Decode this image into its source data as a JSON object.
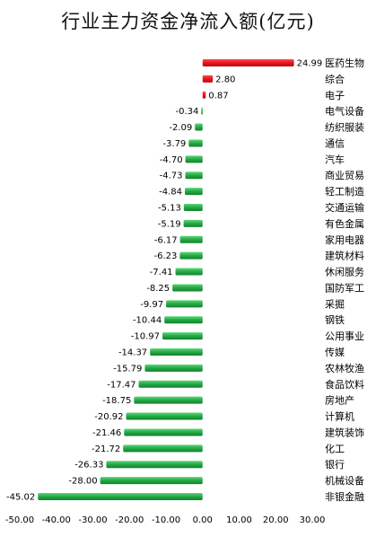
{
  "chart_data": {
    "type": "bar",
    "orientation": "horizontal",
    "title": "行业主力资金净流入额(亿元)",
    "xlim": [
      -50,
      30
    ],
    "xticks": [
      -50,
      -40,
      -30,
      -20,
      -10,
      0,
      10,
      20,
      30
    ],
    "xtick_labels": [
      "-50.00",
      "-40.00",
      "-30.00",
      "-20.00",
      "-10.00",
      "0.00",
      "10.00",
      "20.00",
      "30.00"
    ],
    "grid": false,
    "legend": "none",
    "colors": {
      "positive": "#e8141c",
      "negative": "#22aa44"
    },
    "categories": [
      "医药生物",
      "综合",
      "电子",
      "电气设备",
      "纺织服装",
      "通信",
      "汽车",
      "商业贸易",
      "轻工制造",
      "交通运输",
      "有色金属",
      "家用电器",
      "建筑材料",
      "休闲服务",
      "国防军工",
      "采掘",
      "钢铁",
      "公用事业",
      "传媒",
      "农林牧渔",
      "食品饮料",
      "房地产",
      "计算机",
      "建筑装饰",
      "化工",
      "银行",
      "机械设备",
      "非银金融"
    ],
    "values": [
      24.99,
      2.8,
      0.87,
      -0.34,
      -2.09,
      -3.79,
      -4.7,
      -4.73,
      -4.84,
      -5.13,
      -5.19,
      -6.17,
      -6.23,
      -7.41,
      -8.25,
      -9.97,
      -10.44,
      -10.97,
      -14.37,
      -15.79,
      -17.47,
      -18.75,
      -20.92,
      -21.46,
      -21.72,
      -26.33,
      -28.0,
      -45.02
    ],
    "value_labels": [
      "24.99",
      "2.80",
      "0.87",
      "-0.34",
      "-2.09",
      "-3.79",
      "-4.70",
      "-4.73",
      "-4.84",
      "-5.13",
      "-5.19",
      "-6.17",
      "-6.23",
      "-7.41",
      "-8.25",
      "-9.97",
      "-10.44",
      "-10.97",
      "-14.37",
      "-15.79",
      "-17.47",
      "-18.75",
      "-20.92",
      "-21.46",
      "-21.72",
      "-26.33",
      "-28.00",
      "-45.02"
    ]
  }
}
